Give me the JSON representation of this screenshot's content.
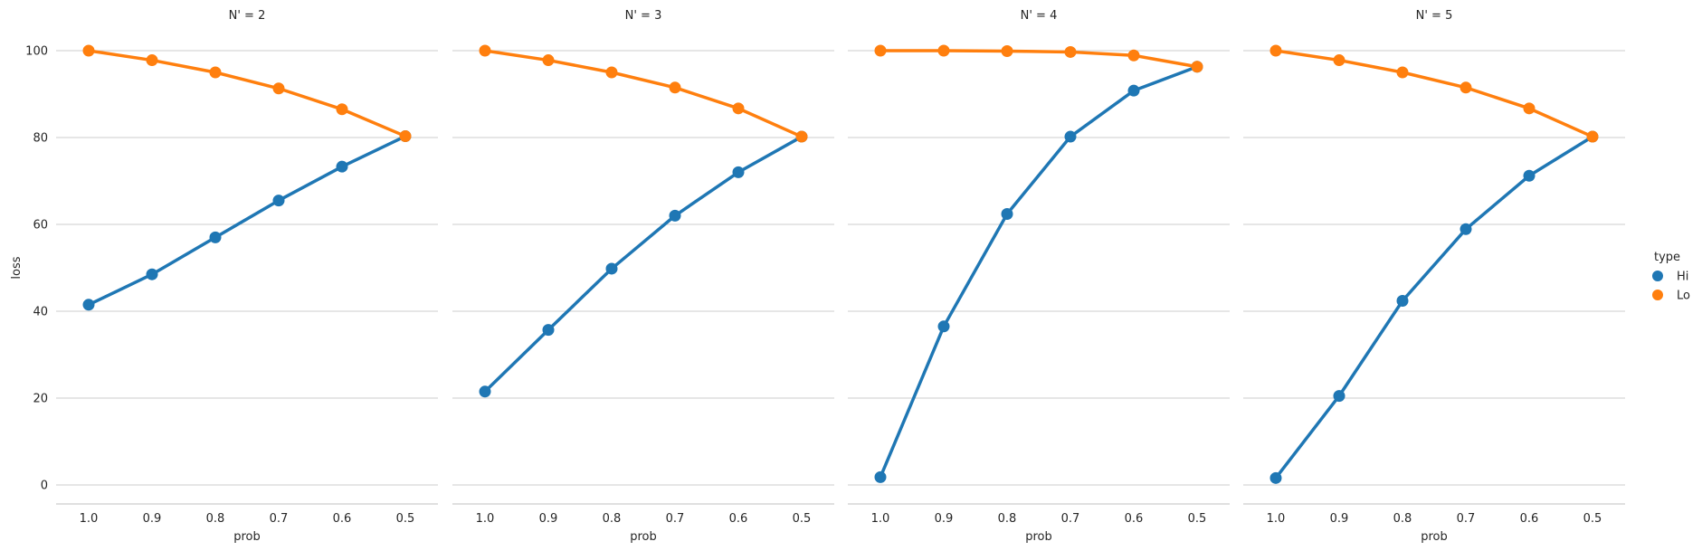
{
  "chart_data": {
    "type": "line",
    "style": "pointplot",
    "facet_label": "N'",
    "xlabel": "prob",
    "ylabel": "loss",
    "categories": [
      "1.0",
      "0.9",
      "0.8",
      "0.7",
      "0.6",
      "0.5"
    ],
    "ylim": [
      -4,
      104
    ],
    "yticks": [
      0,
      20,
      40,
      60,
      80,
      100
    ],
    "grid": "horizontal",
    "legend": {
      "title": "type",
      "placement": "right",
      "entries": [
        {
          "name": "Hi",
          "color": "#1f77b4"
        },
        {
          "name": "Lo",
          "color": "#ff7f0e"
        }
      ]
    },
    "panels": [
      {
        "title": "N' = 2",
        "series": [
          {
            "name": "Hi",
            "color": "#1f77b4",
            "values": [
              41.5,
              48.5,
              57.0,
              65.5,
              73.3,
              80.3
            ]
          },
          {
            "name": "Lo",
            "color": "#ff7f0e",
            "values": [
              100.0,
              97.8,
              95.0,
              91.3,
              86.5,
              80.3
            ]
          }
        ]
      },
      {
        "title": "N' = 3",
        "series": [
          {
            "name": "Hi",
            "color": "#1f77b4",
            "values": [
              21.5,
              35.7,
              49.8,
              62.0,
              72.0,
              80.2
            ]
          },
          {
            "name": "Lo",
            "color": "#ff7f0e",
            "values": [
              100.0,
              97.8,
              95.0,
              91.5,
              86.7,
              80.2
            ]
          }
        ]
      },
      {
        "title": "N' = 4",
        "series": [
          {
            "name": "Hi",
            "color": "#1f77b4",
            "values": [
              1.8,
              36.5,
              62.4,
              80.2,
              90.8,
              96.3
            ]
          },
          {
            "name": "Lo",
            "color": "#ff7f0e",
            "values": [
              100.0,
              100.0,
              99.9,
              99.7,
              98.9,
              96.3
            ]
          }
        ]
      },
      {
        "title": "N' = 5",
        "series": [
          {
            "name": "Hi",
            "color": "#1f77b4",
            "values": [
              1.6,
              20.5,
              42.4,
              58.9,
              71.2,
              80.2
            ]
          },
          {
            "name": "Lo",
            "color": "#ff7f0e",
            "values": [
              100.0,
              97.8,
              95.0,
              91.5,
              86.7,
              80.2
            ]
          }
        ]
      }
    ]
  }
}
